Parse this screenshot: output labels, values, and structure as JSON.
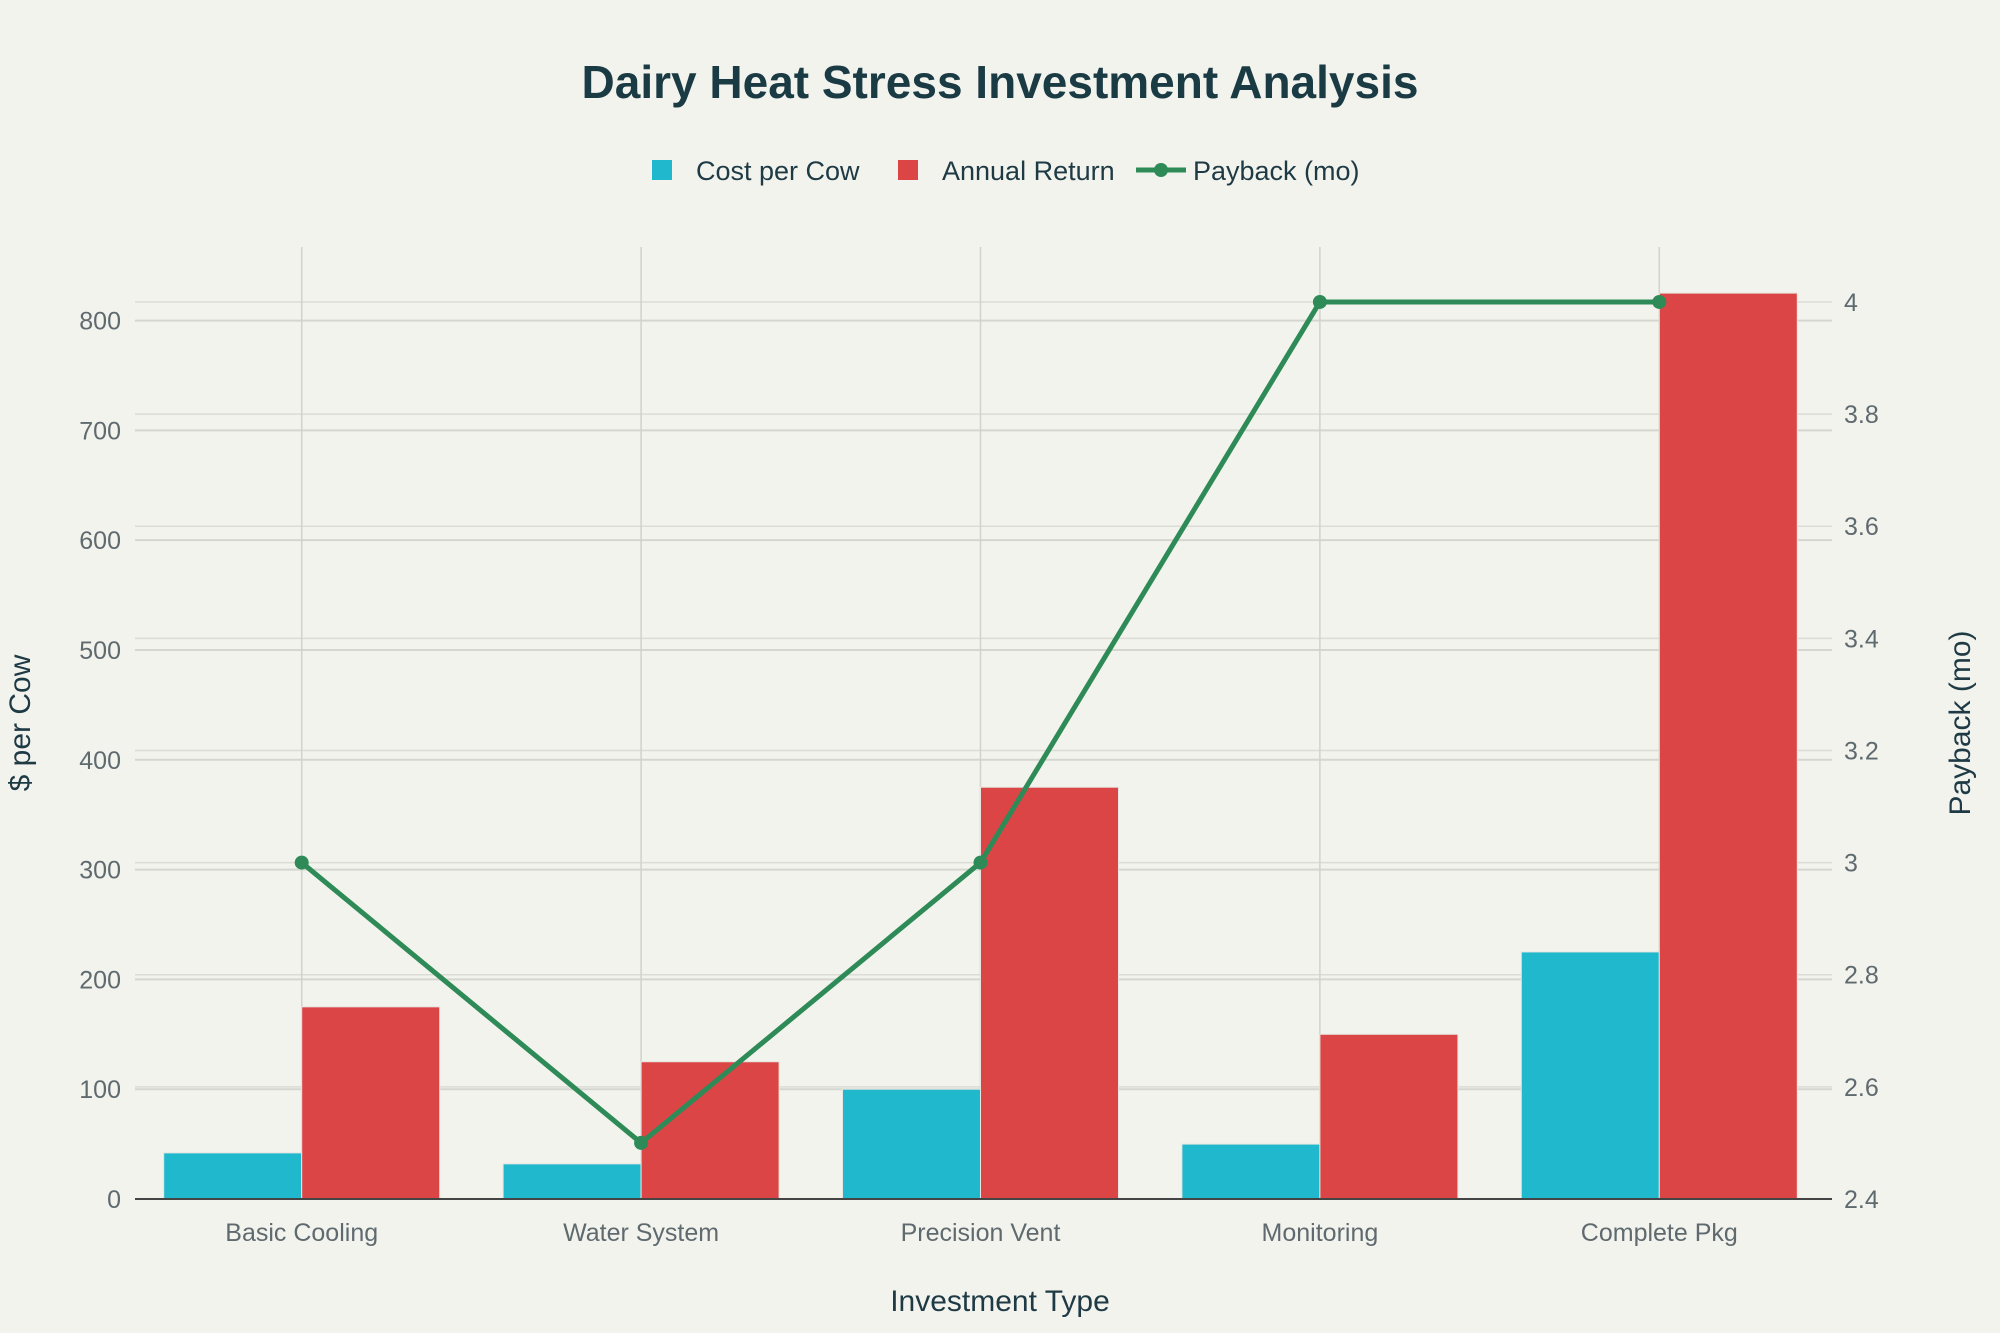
{
  "chart_data": {
    "type": "bar",
    "title": "Dairy Heat Stress Investment Analysis",
    "categories": [
      "Basic Cooling",
      "Water System",
      "Precision Vent",
      "Monitoring",
      "Complete Pkg"
    ],
    "series": [
      {
        "name": "Cost per Cow",
        "type": "bar",
        "axis": "left",
        "color": "#1fb8cd",
        "values": [
          42,
          32,
          100,
          50,
          225
        ]
      },
      {
        "name": "Annual Return",
        "type": "bar",
        "axis": "left",
        "color": "#db4545",
        "values": [
          175,
          125,
          375,
          150,
          825
        ]
      },
      {
        "name": "Payback (mo)",
        "type": "line",
        "axis": "right",
        "color": "#2e8b57",
        "values": [
          3,
          2.5,
          3,
          4,
          4
        ]
      }
    ],
    "xlabel": "Investment Type",
    "ylabel": "$ per Cow",
    "y2label": "Payback (mo)",
    "ylim": [
      0,
      867
    ],
    "y2lim": [
      2.4,
      4.098
    ],
    "yticks": [
      0,
      100,
      200,
      300,
      400,
      500,
      600,
      700,
      800
    ],
    "y2ticks": [
      "2.4",
      "2.6",
      "2.8",
      "3",
      "3.2",
      "3.4",
      "3.6",
      "3.8",
      "4"
    ],
    "grid": true,
    "legend": "top-center"
  }
}
